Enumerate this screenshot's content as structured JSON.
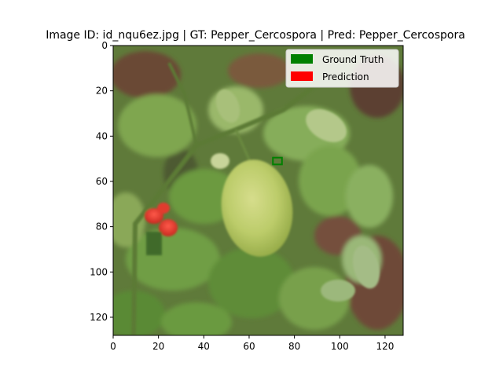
{
  "chart_data": {
    "type": "image",
    "title": "Image ID: id_nqu6ez.jpg | GT: Pepper_Cercospora | Pred: Pepper_Cercospora",
    "xlim": [
      0,
      128
    ],
    "ylim": [
      128,
      0
    ],
    "xticks": [
      0,
      20,
      40,
      60,
      80,
      100,
      120
    ],
    "yticks": [
      0,
      20,
      40,
      60,
      80,
      100,
      120
    ],
    "grid": false,
    "legend": {
      "placement": "top-right",
      "entries": [
        {
          "label": "Ground Truth",
          "color": "#008000"
        },
        {
          "label": "Prediction",
          "color": "#ff0000"
        }
      ]
    },
    "boxes": [
      {
        "name": "Ground Truth",
        "x": [
          70.5,
          74.5
        ],
        "y": [
          49.5,
          52.5
        ],
        "color": "#008000"
      }
    ]
  }
}
